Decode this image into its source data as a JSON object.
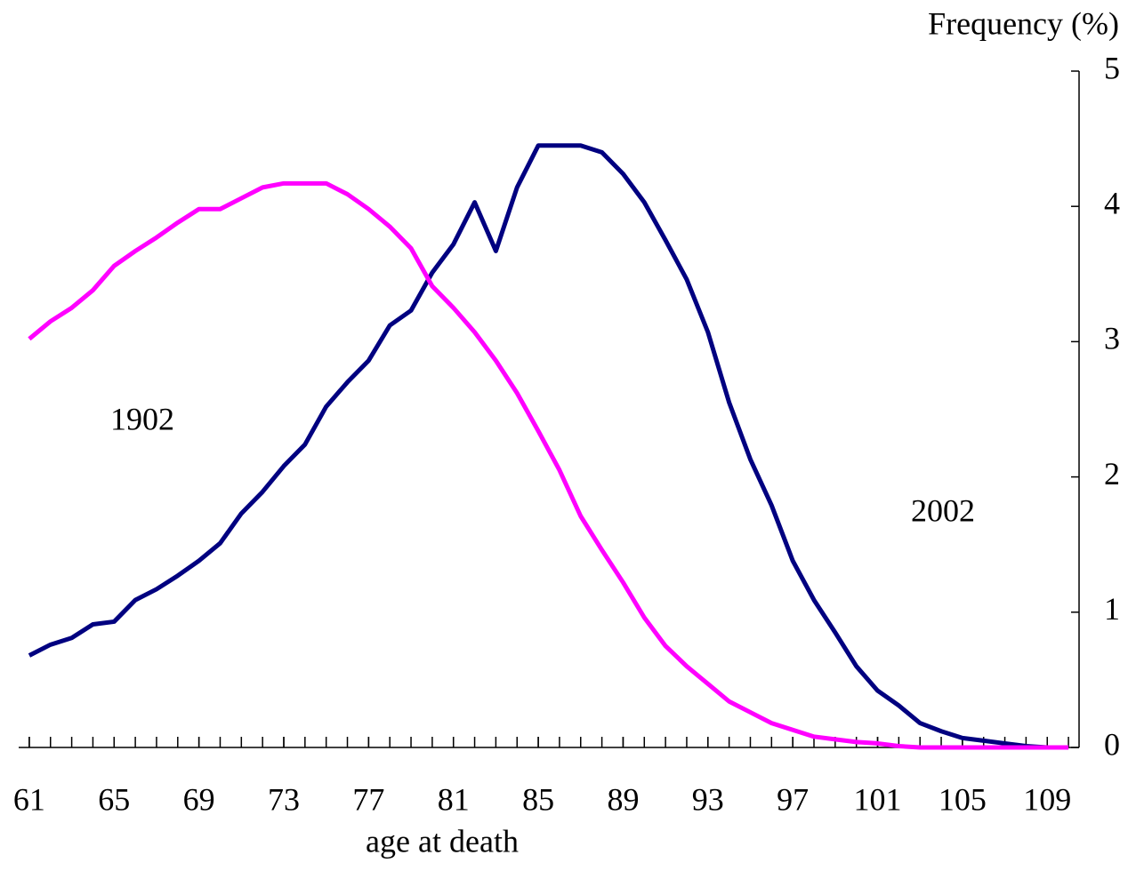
{
  "chart_data": {
    "type": "line",
    "title": "Frequency (%)",
    "x_label": "age at death",
    "annotations": [
      "1902",
      "2002"
    ],
    "x": [
      61,
      62,
      63,
      64,
      65,
      66,
      67,
      68,
      69,
      70,
      71,
      72,
      73,
      74,
      75,
      76,
      77,
      78,
      79,
      80,
      81,
      82,
      83,
      84,
      85,
      86,
      87,
      88,
      89,
      90,
      91,
      92,
      93,
      94,
      95,
      96,
      97,
      98,
      99,
      100,
      101,
      102,
      103,
      104,
      105,
      106,
      107,
      108,
      109,
      110
    ],
    "xlim": [
      60.5,
      110.5
    ],
    "xticks": [
      61,
      65,
      69,
      73,
      77,
      81,
      85,
      89,
      93,
      97,
      101,
      105,
      109
    ],
    "ylim": [
      0,
      5
    ],
    "yticks": [
      0,
      1,
      2,
      3,
      4,
      5
    ],
    "series": [
      {
        "name": "2002",
        "color": "#000080",
        "values": [
          0.68,
          0.76,
          0.81,
          0.91,
          0.93,
          1.09,
          1.17,
          1.27,
          1.38,
          1.51,
          1.73,
          1.89,
          2.08,
          2.24,
          2.52,
          2.7,
          2.86,
          3.12,
          3.23,
          3.51,
          3.72,
          4.03,
          3.67,
          4.14,
          4.45,
          4.45,
          4.45,
          4.4,
          4.24,
          4.03,
          3.75,
          3.46,
          3.07,
          2.55,
          2.13,
          1.79,
          1.38,
          1.09,
          0.85,
          0.6,
          0.42,
          0.31,
          0.18,
          0.12,
          0.07,
          0.05,
          0.03,
          0.01,
          0,
          0
        ]
      },
      {
        "name": "1902",
        "color": "#ff00ff",
        "values": [
          3.02,
          3.15,
          3.25,
          3.38,
          3.56,
          3.67,
          3.77,
          3.88,
          3.98,
          3.98,
          4.06,
          4.14,
          4.17,
          4.17,
          4.17,
          4.09,
          3.98,
          3.85,
          3.69,
          3.41,
          3.25,
          3.07,
          2.86,
          2.62,
          2.34,
          2.05,
          1.71,
          1.46,
          1.22,
          0.96,
          0.75,
          0.6,
          0.47,
          0.34,
          0.26,
          0.18,
          0.13,
          0.08,
          0.06,
          0.04,
          0.03,
          0.01,
          0,
          0,
          0,
          0,
          0,
          0,
          0,
          0
        ]
      }
    ]
  }
}
